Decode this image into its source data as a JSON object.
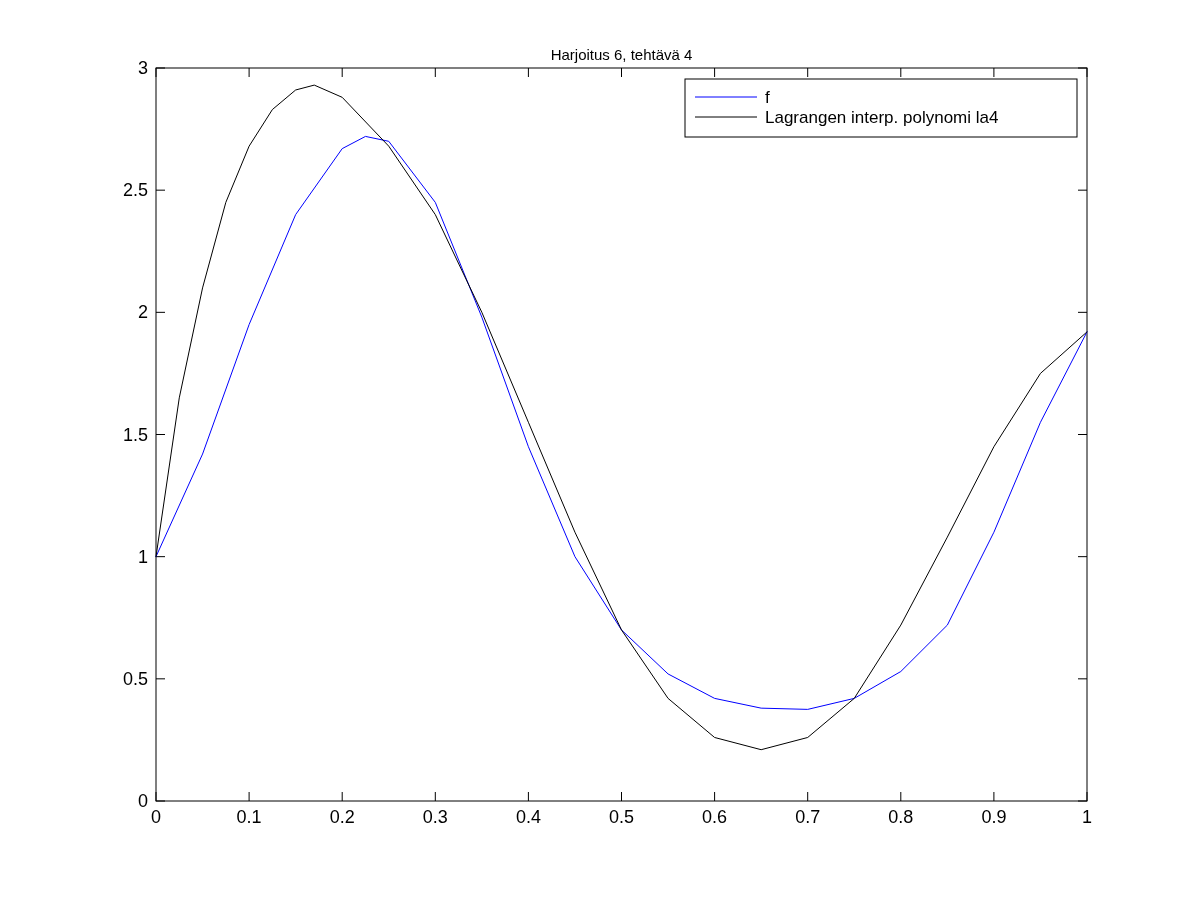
{
  "chart_data": {
    "type": "line",
    "title": "Harjoitus 6, tehtävä 4",
    "x": [
      0,
      0.05,
      0.1,
      0.15,
      0.2,
      0.225,
      0.25,
      0.3,
      0.35,
      0.4,
      0.45,
      0.5,
      0.55,
      0.6,
      0.65,
      0.7,
      0.75,
      0.8,
      0.85,
      0.9,
      0.95,
      1
    ],
    "series": [
      {
        "name": "f",
        "color": "#0000ff",
        "values": [
          1.0,
          1.42,
          1.95,
          2.4,
          2.67,
          2.72,
          2.7,
          2.45,
          1.98,
          1.45,
          1.0,
          0.7,
          0.52,
          0.42,
          0.38,
          0.375,
          0.42,
          0.53,
          0.72,
          1.1,
          1.55,
          1.92
        ]
      },
      {
        "name": "Lagrangen interp. polynomi la4",
        "color": "#000000",
        "x": [
          0,
          0.025,
          0.05,
          0.075,
          0.1,
          0.125,
          0.15,
          0.17,
          0.2,
          0.25,
          0.3,
          0.35,
          0.4,
          0.45,
          0.5,
          0.55,
          0.6,
          0.65,
          0.7,
          0.75,
          0.8,
          0.85,
          0.9,
          0.95,
          1
        ],
        "values": [
          1.0,
          1.65,
          2.1,
          2.45,
          2.68,
          2.83,
          2.91,
          2.93,
          2.88,
          2.68,
          2.4,
          2.0,
          1.55,
          1.1,
          0.7,
          0.42,
          0.26,
          0.21,
          0.26,
          0.42,
          0.72,
          1.08,
          1.45,
          1.75,
          1.92
        ]
      }
    ],
    "xlim": [
      0,
      1
    ],
    "xticks": [
      0,
      0.1,
      0.2,
      0.3,
      0.4,
      0.5,
      0.6,
      0.7,
      0.8,
      0.9,
      1
    ],
    "ylim": [
      0,
      3
    ],
    "yticks": [
      0,
      0.5,
      1,
      1.5,
      2,
      2.5,
      3
    ],
    "legend": "top right",
    "marker": "none",
    "line_style": "solid",
    "grid": false
  }
}
